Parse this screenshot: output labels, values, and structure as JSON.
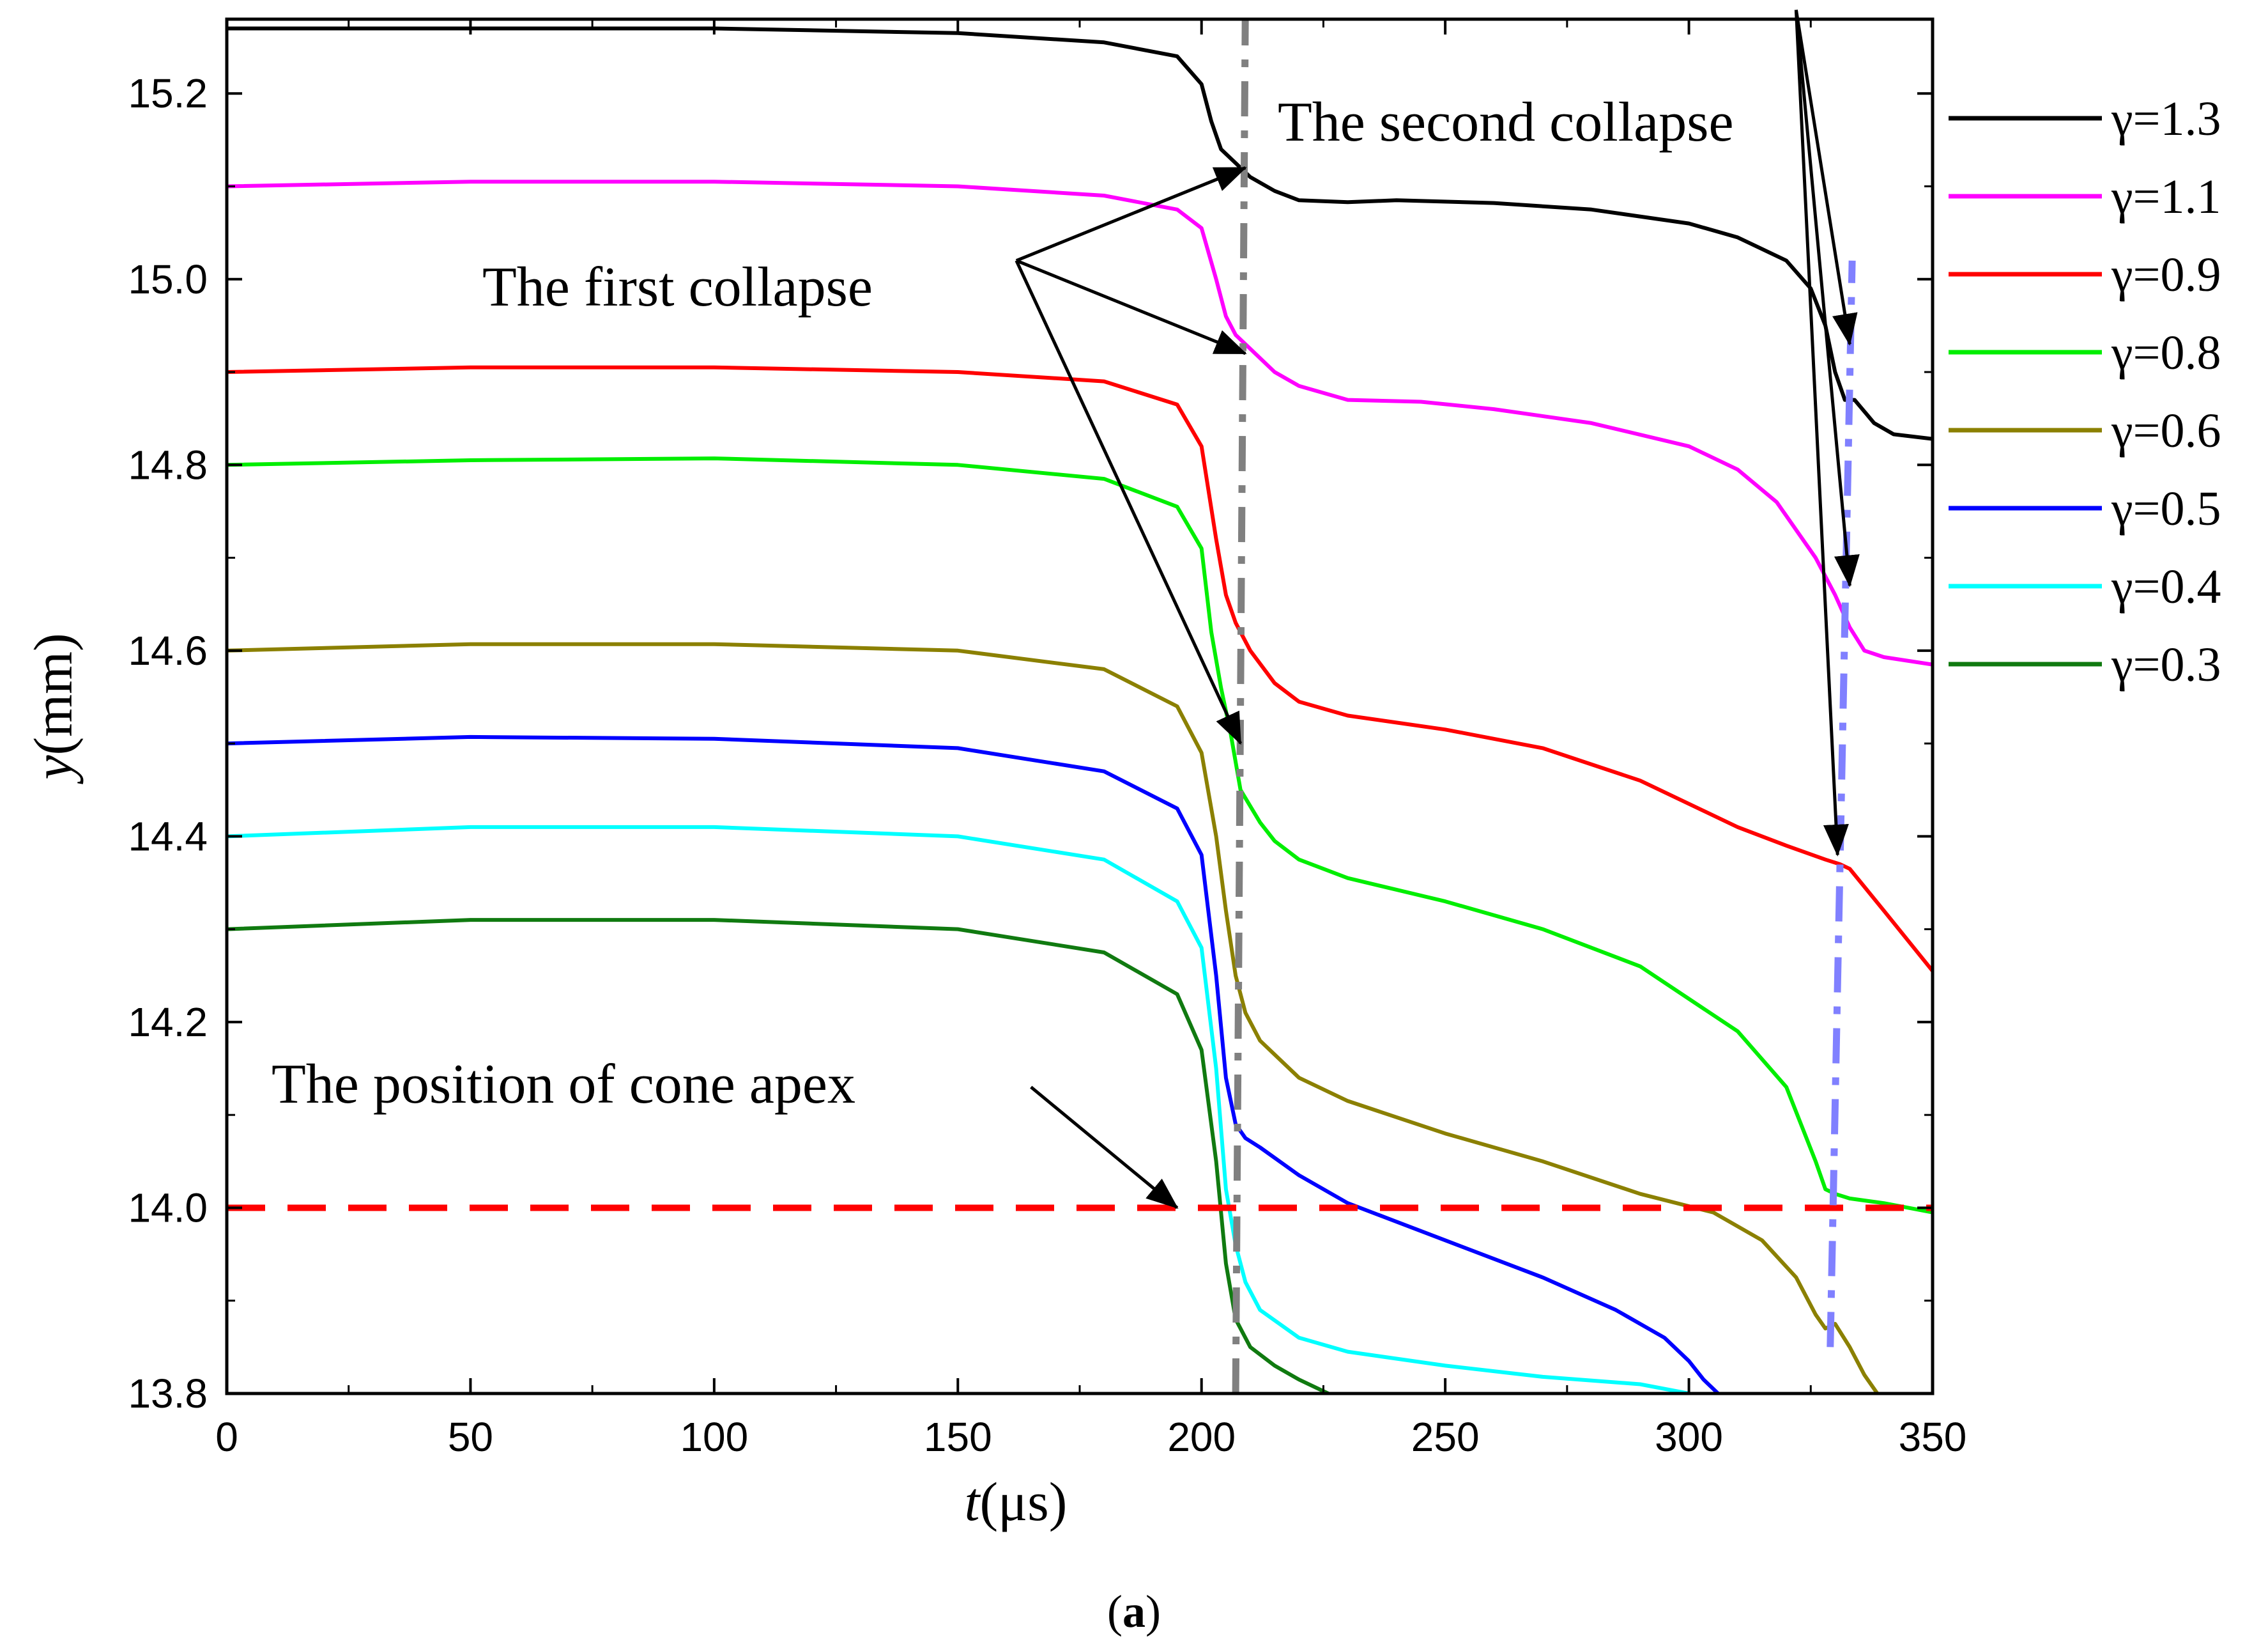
{
  "chart_data": {
    "type": "line",
    "title": "",
    "caption": "(a)",
    "caption_letter": "a",
    "xlabel": "t(μs)",
    "ylabel": "y(mm)",
    "xlabel_var": "t",
    "xlabel_unit": "(μs)",
    "ylabel_var": "y",
    "ylabel_unit": "(mm)",
    "xlim": [
      0,
      350
    ],
    "ylim": [
      13.8,
      15.28
    ],
    "xticks": [
      0,
      50,
      100,
      150,
      200,
      250,
      300,
      350
    ],
    "xtick_labels": [
      "0",
      "50",
      "100",
      "150",
      "200",
      "250",
      "300",
      "350"
    ],
    "yticks": [
      13.8,
      14.0,
      14.2,
      14.4,
      14.6,
      14.8,
      15.0,
      15.2
    ],
    "ytick_labels": [
      "13.8",
      "14.0",
      "14.2",
      "14.4",
      "14.6",
      "14.8",
      "15.0",
      "15.2"
    ],
    "legend_position": "right-outside",
    "series": [
      {
        "name": "γ=1.3",
        "label": "1.3",
        "color": "#000000",
        "x": [
          0,
          50,
          100,
          150,
          180,
          195,
          200,
          202,
          204,
          206,
          210,
          215,
          220,
          230,
          240,
          260,
          280,
          300,
          310,
          320,
          325,
          328,
          330,
          332,
          334,
          338,
          342,
          350
        ],
        "y": [
          15.27,
          15.27,
          15.27,
          15.265,
          15.255,
          15.24,
          15.21,
          15.17,
          15.14,
          15.13,
          15.11,
          15.095,
          15.085,
          15.083,
          15.085,
          15.082,
          15.075,
          15.06,
          15.045,
          15.02,
          14.99,
          14.95,
          14.9,
          14.87,
          14.87,
          14.845,
          14.833,
          14.828
        ]
      },
      {
        "name": "γ=1.1",
        "label": "1.1",
        "color": "#ff00ff",
        "x": [
          0,
          50,
          100,
          150,
          180,
          195,
          200,
          203,
          205,
          207,
          210,
          215,
          220,
          230,
          245,
          260,
          280,
          300,
          310,
          318,
          322,
          326,
          330,
          333,
          336,
          340,
          350
        ],
        "y": [
          15.1,
          15.105,
          15.105,
          15.1,
          15.09,
          15.075,
          15.055,
          15.0,
          14.96,
          14.94,
          14.925,
          14.9,
          14.885,
          14.87,
          14.868,
          14.86,
          14.845,
          14.82,
          14.795,
          14.76,
          14.73,
          14.7,
          14.66,
          14.625,
          14.6,
          14.593,
          14.585
        ]
      },
      {
        "name": "γ=0.9",
        "label": "0.9",
        "color": "#ff0000",
        "x": [
          0,
          50,
          100,
          150,
          180,
          195,
          200,
          203,
          205,
          207,
          210,
          215,
          220,
          230,
          250,
          270,
          290,
          310,
          320,
          328,
          331,
          333,
          340,
          350
        ],
        "y": [
          14.9,
          14.905,
          14.905,
          14.9,
          14.89,
          14.865,
          14.82,
          14.72,
          14.66,
          14.63,
          14.6,
          14.565,
          14.545,
          14.53,
          14.515,
          14.495,
          14.46,
          14.41,
          14.39,
          14.375,
          14.37,
          14.365,
          14.32,
          14.255
        ]
      },
      {
        "name": "γ=0.8",
        "label": "0.8",
        "color": "#00ee00",
        "x": [
          0,
          50,
          100,
          150,
          180,
          195,
          200,
          202,
          204,
          206,
          208,
          212,
          215,
          220,
          230,
          250,
          270,
          290,
          310,
          320,
          326,
          328,
          330,
          333,
          340,
          350
        ],
        "y": [
          14.8,
          14.805,
          14.807,
          14.8,
          14.785,
          14.755,
          14.71,
          14.62,
          14.56,
          14.51,
          14.45,
          14.415,
          14.395,
          14.375,
          14.355,
          14.33,
          14.3,
          14.26,
          14.19,
          14.13,
          14.05,
          14.02,
          14.015,
          14.01,
          14.005,
          13.995
        ]
      },
      {
        "name": "γ=0.6",
        "label": "0.6",
        "color": "#8b8000",
        "x": [
          0,
          50,
          100,
          150,
          180,
          195,
          200,
          203,
          205,
          207,
          209,
          212,
          220,
          230,
          250,
          270,
          290,
          305,
          315,
          322,
          326,
          328,
          330,
          333,
          336,
          340
        ],
        "y": [
          14.6,
          14.607,
          14.607,
          14.6,
          14.58,
          14.54,
          14.49,
          14.4,
          14.32,
          14.25,
          14.21,
          14.18,
          14.14,
          14.115,
          14.08,
          14.05,
          14.015,
          13.995,
          13.965,
          13.925,
          13.885,
          13.87,
          13.875,
          13.85,
          13.82,
          13.79
        ]
      },
      {
        "name": "γ=0.5",
        "label": "0.5",
        "color": "#0000ff",
        "x": [
          0,
          50,
          100,
          150,
          180,
          195,
          200,
          203,
          205,
          207,
          209,
          212,
          220,
          230,
          250,
          270,
          285,
          295,
          300,
          303,
          306,
          308
        ],
        "y": [
          14.5,
          14.507,
          14.505,
          14.495,
          14.47,
          14.43,
          14.38,
          14.25,
          14.14,
          14.09,
          14.075,
          14.065,
          14.035,
          14.005,
          13.965,
          13.925,
          13.89,
          13.86,
          13.835,
          13.815,
          13.8,
          13.79
        ]
      },
      {
        "name": "γ=0.4",
        "label": "0.4",
        "color": "#00ffff",
        "x": [
          0,
          50,
          100,
          150,
          180,
          195,
          200,
          203,
          205,
          207,
          209,
          212,
          220,
          230,
          250,
          270,
          290,
          300
        ],
        "y": [
          14.4,
          14.41,
          14.41,
          14.4,
          14.375,
          14.33,
          14.28,
          14.15,
          14.02,
          13.96,
          13.92,
          13.89,
          13.86,
          13.845,
          13.83,
          13.818,
          13.81,
          13.8
        ]
      },
      {
        "name": "γ=0.3",
        "label": "0.3",
        "color": "#107a10",
        "x": [
          0,
          50,
          100,
          150,
          180,
          195,
          200,
          203,
          205,
          207,
          210,
          215,
          220,
          226
        ],
        "y": [
          14.3,
          14.31,
          14.31,
          14.3,
          14.275,
          14.23,
          14.17,
          14.05,
          13.94,
          13.88,
          13.85,
          13.83,
          13.815,
          13.8
        ]
      }
    ],
    "reference_lines": [
      {
        "name": "cone-apex",
        "type": "horizontal",
        "y": 14.0,
        "color": "#ff0000",
        "style": "dashed"
      },
      {
        "name": "first-collapse-line",
        "type": "segment",
        "x1": 207,
        "y1": 13.8,
        "x2": 209,
        "y2": 15.3,
        "color": "#808080",
        "style": "dash-dot"
      },
      {
        "name": "second-collapse-line",
        "type": "segment",
        "x1": 329,
        "y1": 13.85,
        "x2": 333.5,
        "y2": 15.02,
        "color": "#8080ff",
        "style": "dash-dot"
      }
    ],
    "annotations": [
      {
        "text": "The first collapse",
        "anchor": [
          162,
          15.02
        ],
        "targets": [
          [
            209,
            15.12
          ],
          [
            209,
            14.92
          ],
          [
            208,
            14.5
          ]
        ]
      },
      {
        "text": "The second collapse",
        "anchor": [
          322,
          15.29
        ],
        "targets": [
          [
            333,
            14.93
          ],
          [
            333,
            14.67
          ],
          [
            330.5,
            14.38
          ]
        ]
      },
      {
        "text": "The position of cone apex",
        "anchor": [
          165,
          14.13
        ],
        "targets": [
          [
            195,
            14.0
          ]
        ]
      }
    ]
  }
}
